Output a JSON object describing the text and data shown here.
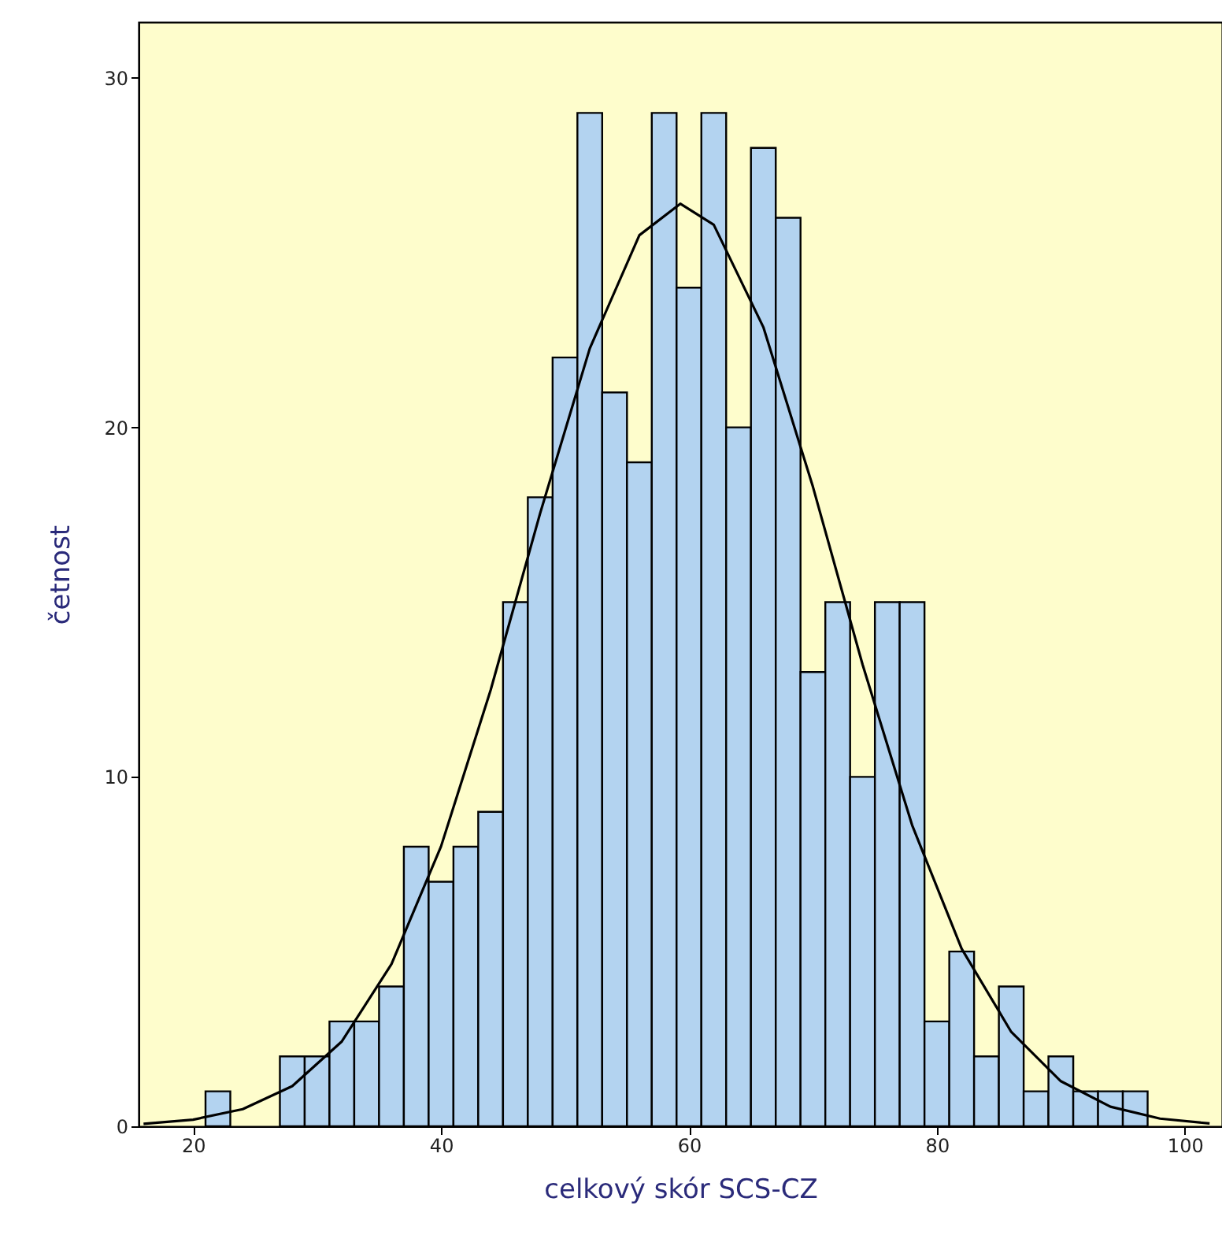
{
  "chart_data": {
    "type": "histogram",
    "xlabel": "celkový skór SCS-CZ",
    "ylabel": "četnost",
    "bins": [
      21,
      23,
      25,
      27,
      29,
      31,
      33,
      35,
      37,
      39,
      41,
      43,
      45,
      47,
      49,
      51,
      53,
      55,
      57,
      59,
      61,
      63,
      65,
      67,
      69,
      71,
      73,
      75,
      77,
      79,
      81,
      83,
      85,
      87,
      89,
      91,
      93,
      95,
      97
    ],
    "values": [
      1,
      0,
      0,
      2,
      2,
      3,
      3,
      4,
      8,
      7,
      8,
      9,
      15,
      18,
      22,
      29,
      21,
      19,
      29,
      24,
      29,
      20,
      28,
      26,
      13,
      15,
      10,
      15,
      15,
      3,
      5,
      2,
      4,
      1,
      2,
      1,
      1,
      1
    ],
    "color": "#b3d3f0",
    "series": [
      {
        "type": "line",
        "color": "#000000",
        "x": [
          16,
          20,
          24,
          28,
          32,
          36,
          40,
          44,
          48,
          52,
          56,
          59.3,
          62,
          66,
          70,
          74,
          78,
          82,
          86,
          90,
          94,
          98,
          102
        ],
        "values": [
          0.07,
          0.19,
          0.49,
          1.15,
          2.43,
          4.64,
          8.01,
          12.48,
          17.55,
          22.26,
          25.5,
          26.4,
          25.8,
          22.87,
          18.3,
          13.22,
          8.62,
          5.08,
          2.7,
          1.29,
          0.56,
          0.22,
          0.08
        ]
      }
    ],
    "xlim": [
      15.6,
      103
    ],
    "ylim": [
      0,
      31.6
    ],
    "xticks": [
      20,
      40,
      60,
      80,
      100
    ],
    "yticks": [
      0,
      10,
      20,
      30
    ],
    "grid": false,
    "marker": "none",
    "line_style": "solid"
  }
}
